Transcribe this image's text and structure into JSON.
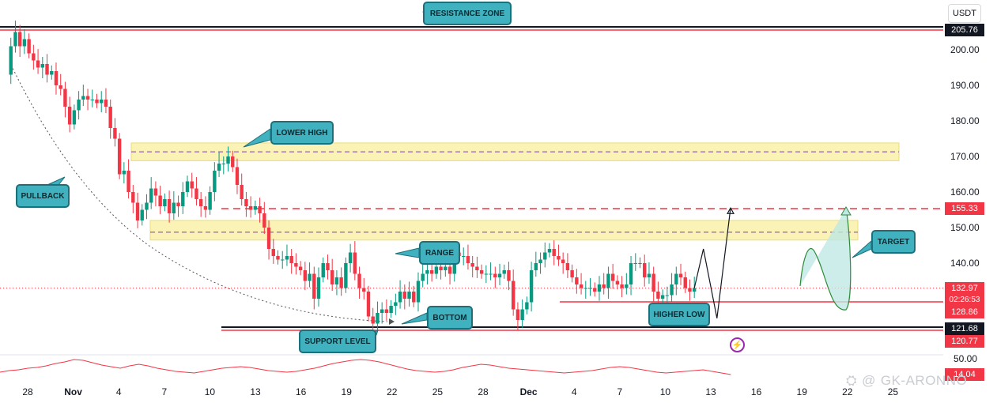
{
  "currency": "USDT",
  "watermark": "GK-ARONNO",
  "colors": {
    "bull": "#089981",
    "bear": "#f23645",
    "zone": "#fbf3b6",
    "callout": "#40b1bf",
    "red": "#f23645"
  },
  "price_labels": {
    "resistance": "205.76",
    "target": "155.33",
    "current": "132.97",
    "countdown": "02:26:53",
    "higher_low": "128.86",
    "support_top": "121.68",
    "support_bottom": "120.77",
    "indicator": "14.04"
  },
  "callouts": {
    "resistance_zone": "RESISTANCE ZONE",
    "lower_high": "LOWER HIGH",
    "pullback": "PULLBACK",
    "range": "RANGE",
    "bottom": "BOTTOM",
    "support_level": "SUPPORT LEVEL",
    "higher_low": "HIGHER LOW",
    "target": "TARGET"
  },
  "chart_data": {
    "type": "candlestick",
    "y_axis": {
      "ticks": [
        200,
        190,
        180,
        170,
        160,
        150,
        140
      ],
      "lower_pane_tick": "50.00",
      "position": "right"
    },
    "x_axis": {
      "ticks": [
        "28",
        "Nov",
        "4",
        "7",
        "10",
        "13",
        "16",
        "19",
        "22",
        "25",
        "28",
        "Dec",
        "4",
        "7",
        "10",
        "13",
        "16",
        "19",
        "22",
        "25"
      ]
    },
    "levels": {
      "resistance": 205.76,
      "target": 155.33,
      "higher_low": 128.86,
      "support_top": 121.68,
      "support_bottom": 120.77,
      "current": 132.97
    },
    "zones": [
      {
        "name": "upper supply zone",
        "from": 168.8,
        "to": 173.8,
        "mid": 171.3
      },
      {
        "name": "range top zone",
        "from": 146.5,
        "to": 152.0,
        "mid": 148.7
      }
    ],
    "ohlc_path": [
      [
        0,
        193
      ],
      [
        0.5,
        201
      ],
      [
        1,
        205
      ],
      [
        1.5,
        201
      ],
      [
        2,
        203
      ],
      [
        2.5,
        199
      ],
      [
        3,
        197
      ],
      [
        3.5,
        195
      ],
      [
        4,
        196
      ],
      [
        4.5,
        193
      ],
      [
        5,
        194
      ],
      [
        5.5,
        190
      ],
      [
        6,
        189
      ],
      [
        6.5,
        184
      ],
      [
        7,
        179
      ],
      [
        7.5,
        183
      ],
      [
        8,
        186
      ],
      [
        8.5,
        187
      ],
      [
        9,
        186
      ],
      [
        9.5,
        186
      ],
      [
        10,
        185
      ],
      [
        10.5,
        186
      ],
      [
        11,
        184
      ],
      [
        11.5,
        178
      ],
      [
        12,
        175
      ],
      [
        12.5,
        165
      ],
      [
        13,
        166
      ],
      [
        13.5,
        160
      ],
      [
        14,
        157
      ],
      [
        14.5,
        152
      ],
      [
        15,
        155
      ],
      [
        15.5,
        157
      ],
      [
        16,
        161
      ],
      [
        16.5,
        159
      ],
      [
        17,
        156
      ],
      [
        17.5,
        158
      ],
      [
        18,
        154
      ],
      [
        18.5,
        157
      ],
      [
        19,
        156
      ],
      [
        19.5,
        160
      ],
      [
        20,
        163
      ],
      [
        20.5,
        161
      ],
      [
        21,
        158
      ],
      [
        21.5,
        156
      ],
      [
        22,
        155
      ],
      [
        22.5,
        160
      ],
      [
        23,
        166
      ],
      [
        23.5,
        168
      ],
      [
        24,
        168
      ],
      [
        24.5,
        170
      ],
      [
        25,
        167
      ],
      [
        25.5,
        162
      ],
      [
        26,
        158
      ],
      [
        26.5,
        156
      ],
      [
        27,
        155
      ],
      [
        27.5,
        156
      ],
      [
        28,
        154
      ],
      [
        28.5,
        150
      ],
      [
        29,
        144
      ],
      [
        29.5,
        142
      ],
      [
        30,
        141
      ],
      [
        30.5,
        141
      ],
      [
        31,
        142
      ],
      [
        31.5,
        140
      ],
      [
        32,
        139
      ],
      [
        32.5,
        138
      ],
      [
        33,
        135
      ],
      [
        33.5,
        137
      ],
      [
        34,
        130
      ],
      [
        34.5,
        136
      ],
      [
        35,
        140
      ],
      [
        35.5,
        138
      ],
      [
        36,
        134
      ],
      [
        36.5,
        136
      ],
      [
        37,
        133
      ],
      [
        37.5,
        140
      ],
      [
        38,
        143
      ],
      [
        38.5,
        137
      ],
      [
        39,
        133
      ],
      [
        39.5,
        132
      ],
      [
        40,
        125
      ],
      [
        40.5,
        123
      ],
      [
        41,
        126
      ],
      [
        41.5,
        127
      ],
      [
        42,
        126
      ],
      [
        42.5,
        128
      ],
      [
        43,
        129
      ],
      [
        43.5,
        132
      ],
      [
        44,
        130
      ],
      [
        44.5,
        132
      ],
      [
        45,
        129
      ],
      [
        45.5,
        135
      ],
      [
        46,
        137
      ],
      [
        46.5,
        138
      ],
      [
        47,
        137
      ],
      [
        47.5,
        139
      ],
      [
        48,
        138
      ],
      [
        48.5,
        139
      ],
      [
        49,
        137
      ],
      [
        49.5,
        143
      ],
      [
        50,
        142
      ],
      [
        50.5,
        142
      ],
      [
        51,
        140
      ],
      [
        51.5,
        139
      ],
      [
        52,
        138
      ],
      [
        52.5,
        137
      ],
      [
        53,
        137
      ],
      [
        53.5,
        137
      ],
      [
        54,
        136
      ],
      [
        54.5,
        137
      ],
      [
        55,
        138
      ],
      [
        55.5,
        135
      ],
      [
        56,
        127
      ],
      [
        56.5,
        124
      ],
      [
        57,
        127
      ],
      [
        57.5,
        129
      ],
      [
        58,
        138
      ],
      [
        58.5,
        140
      ],
      [
        59,
        141
      ],
      [
        59.5,
        143
      ],
      [
        60,
        144
      ],
      [
        60.5,
        142
      ],
      [
        61,
        141
      ],
      [
        61.5,
        140
      ],
      [
        62,
        138
      ],
      [
        62.5,
        136
      ],
      [
        63,
        134
      ],
      [
        63.5,
        133
      ],
      [
        64,
        133
      ],
      [
        64.5,
        133
      ],
      [
        65,
        132
      ],
      [
        65.5,
        134
      ],
      [
        66,
        133
      ],
      [
        66.5,
        137
      ],
      [
        67,
        135
      ],
      [
        67.5,
        134
      ],
      [
        68,
        133
      ],
      [
        68.5,
        134
      ],
      [
        69,
        140
      ],
      [
        69.5,
        140
      ],
      [
        70,
        140
      ],
      [
        70.5,
        136
      ],
      [
        71,
        137
      ],
      [
        71.5,
        132
      ],
      [
        72,
        130
      ],
      [
        72.5,
        131
      ],
      [
        73,
        131
      ],
      [
        73.5,
        134
      ],
      [
        74,
        137
      ],
      [
        74.5,
        136
      ],
      [
        75,
        133
      ],
      [
        75.5,
        132
      ],
      [
        76,
        133
      ]
    ],
    "projection": {
      "path_a": [
        [
          76,
          133
        ],
        [
          77,
          144
        ],
        [
          78.5,
          124.5
        ],
        [
          80,
          155.5
        ]
      ],
      "path_b": [
        [
          82,
          136
        ],
        [
          83,
          145
        ],
        [
          86,
          125
        ],
        [
          87,
          155
        ]
      ]
    },
    "indicator": {
      "name": "lower pane oscillator",
      "last": 14.04
    }
  }
}
